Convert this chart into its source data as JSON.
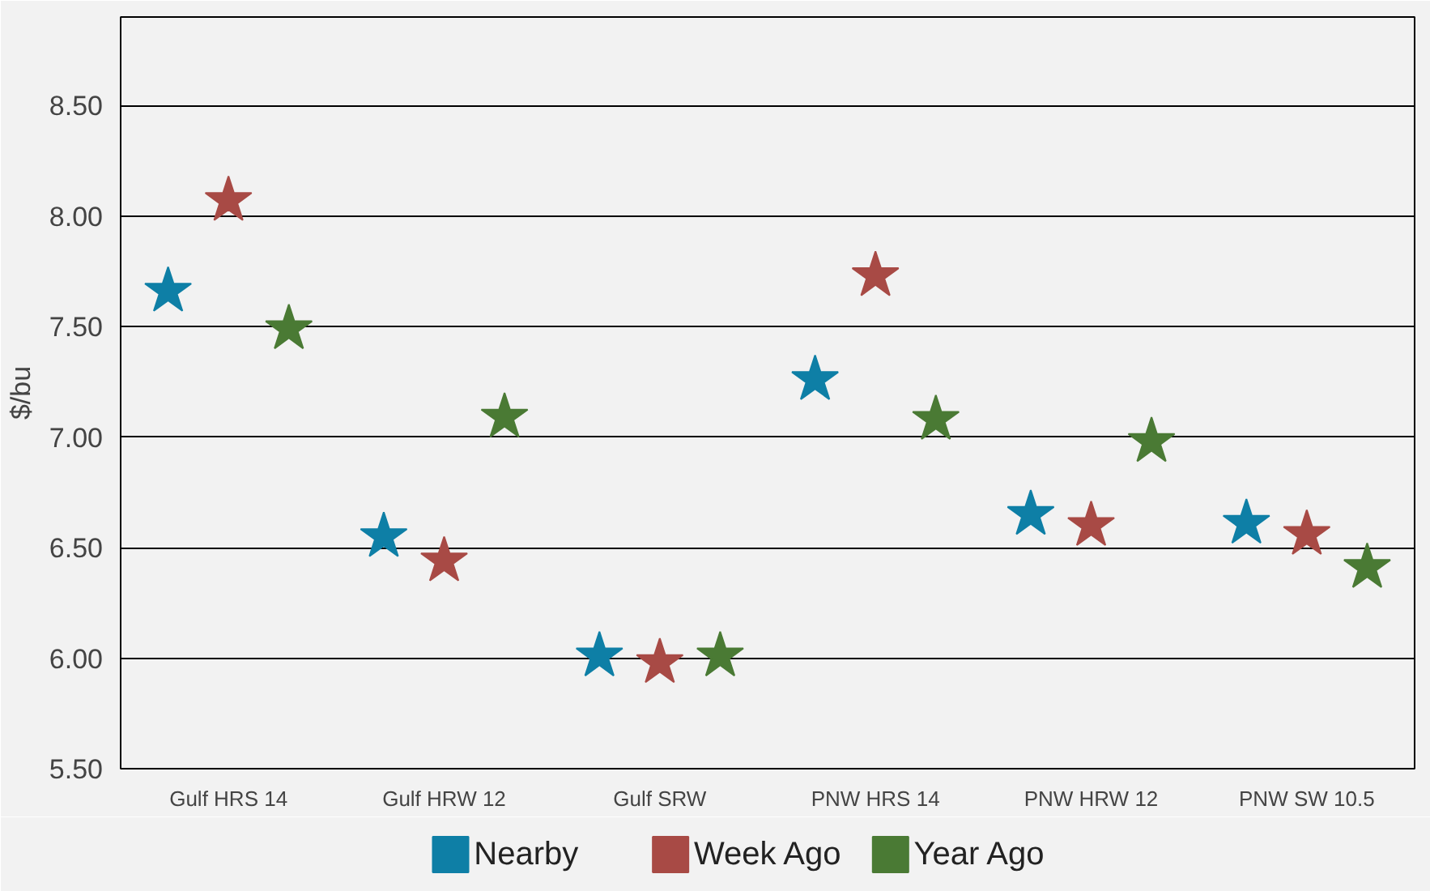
{
  "chart_data": {
    "type": "scatter",
    "ylabel": "$/bu",
    "categories": [
      "Gulf HRS 14",
      "Gulf HRW 12",
      "Gulf SRW",
      "PNW HRS 14",
      "PNW HRW 12",
      "PNW SW 10.5"
    ],
    "series": [
      {
        "name": "Nearby",
        "color": "#0e7fa6",
        "values": [
          7.66,
          6.55,
          6.01,
          7.26,
          6.65,
          6.61
        ]
      },
      {
        "name": "Week Ago",
        "color": "#a84a45",
        "values": [
          8.07,
          6.44,
          5.98,
          7.73,
          6.6,
          6.56
        ]
      },
      {
        "name": "Year Ago",
        "color": "#4a7a34",
        "values": [
          7.49,
          7.09,
          6.01,
          7.08,
          6.98,
          6.41
        ]
      }
    ],
    "ylim": [
      5.5,
      8.9
    ],
    "yticks": [
      {
        "value": 5.5,
        "label": "5.50"
      },
      {
        "value": 6,
        "label": "6.00"
      },
      {
        "value": 6.5,
        "label": "6.50"
      },
      {
        "value": 7,
        "label": "7.00"
      },
      {
        "value": 7.5,
        "label": "7.50"
      },
      {
        "value": 8,
        "label": "8.00"
      },
      {
        "value": 8.5,
        "label": "8.50"
      }
    ],
    "grid": "y",
    "legend": "bottom",
    "marker": "star"
  }
}
